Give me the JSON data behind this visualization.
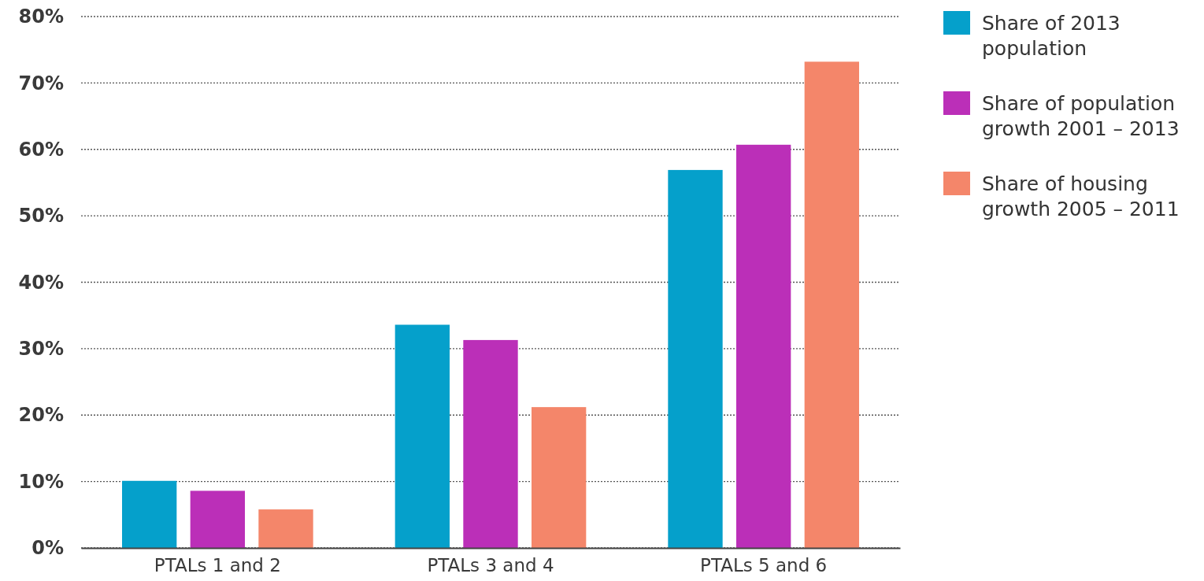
{
  "chart_data": {
    "type": "bar",
    "categories": [
      "PTALs 1 and 2",
      "PTALs 3 and 4",
      "PTALs 5 and 6"
    ],
    "series": [
      {
        "name": "Share of 2013 population",
        "color": "#05a0cb",
        "values": [
          10.1,
          33.6,
          56.9
        ]
      },
      {
        "name": "Share of population growth 2001 – 2013",
        "color": "#bb2fb8",
        "values": [
          8.6,
          31.3,
          60.7
        ]
      },
      {
        "name": "Share of housing growth 2005 – 2011",
        "color": "#f4866a",
        "values": [
          5.8,
          21.2,
          73.2
        ]
      }
    ],
    "ylim": [
      0,
      80
    ],
    "yticks": [
      {
        "value": 0,
        "label": "0%"
      },
      {
        "value": 10,
        "label": "10%"
      },
      {
        "value": 20,
        "label": "20%"
      },
      {
        "value": 30,
        "label": "30%"
      },
      {
        "value": 40,
        "label": "40%"
      },
      {
        "value": 50,
        "label": "50%"
      },
      {
        "value": 60,
        "label": "60%"
      },
      {
        "value": 70,
        "label": "70%"
      },
      {
        "value": 80,
        "label": "80%"
      }
    ],
    "grid": "y",
    "legend": "right"
  }
}
